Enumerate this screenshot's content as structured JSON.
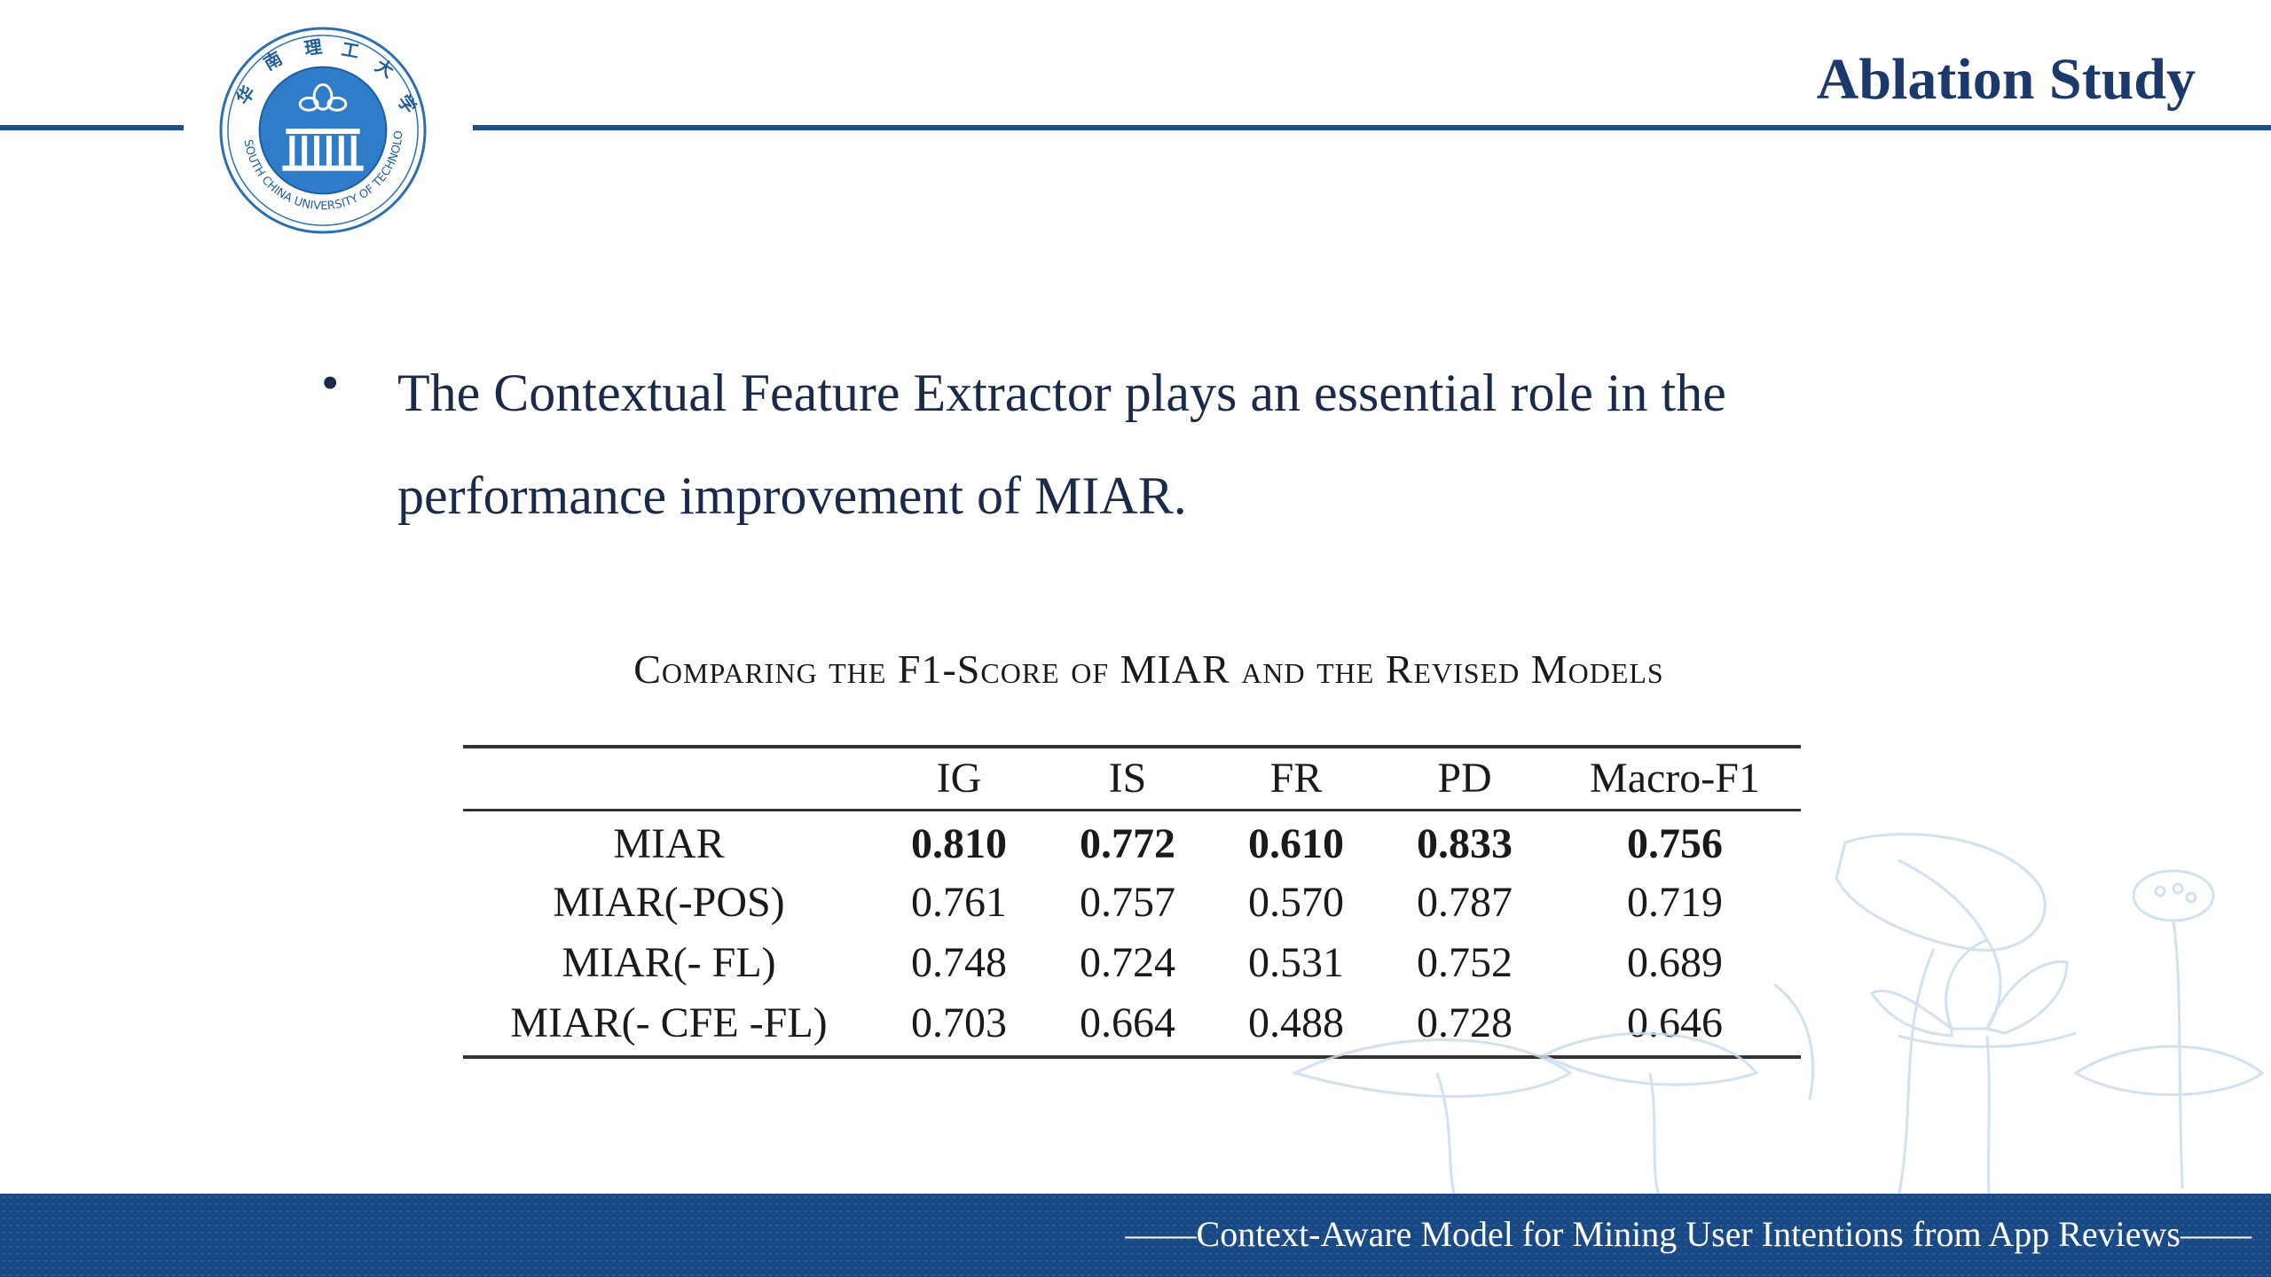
{
  "header": {
    "title": "Ablation Study",
    "logo_icon": "university-seal-icon",
    "accent_color": "#1f4e8c"
  },
  "bullet": {
    "text": "The Contextual Feature Extractor plays an essential role in the performance improvement of MIAR."
  },
  "table": {
    "caption": "Comparing the F1-Score of MIAR and the Revised Models",
    "columns": [
      "",
      "IG",
      "IS",
      "FR",
      "PD",
      "Macro-F1"
    ],
    "rows": [
      {
        "model": "MIAR",
        "values": [
          "0.810",
          "0.772",
          "0.610",
          "0.833",
          "0.756"
        ],
        "bold": true
      },
      {
        "model": "MIAR(-POS)",
        "values": [
          "0.761",
          "0.757",
          "0.570",
          "0.787",
          "0.719"
        ],
        "bold": false
      },
      {
        "model": "MIAR(- FL)",
        "values": [
          "0.748",
          "0.724",
          "0.531",
          "0.752",
          "0.689"
        ],
        "bold": false
      },
      {
        "model": "MIAR(- CFE -FL)",
        "values": [
          "0.703",
          "0.664",
          "0.488",
          "0.728",
          "0.646"
        ],
        "bold": false
      }
    ]
  },
  "footer": {
    "text": "——Context-Aware Model for Mining User Intentions from App Reviews——",
    "background_color": "#1a4a86"
  }
}
